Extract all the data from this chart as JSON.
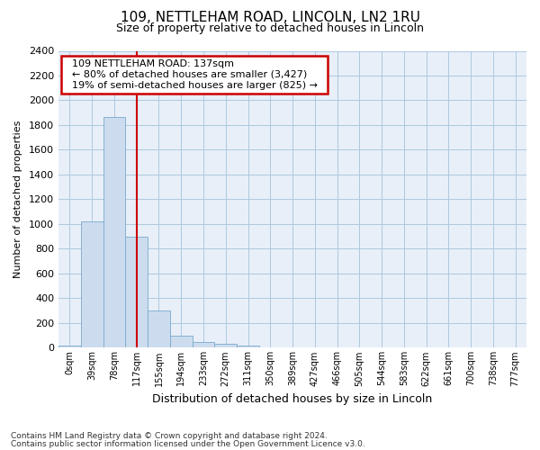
{
  "title_line1": "109, NETTLEHAM ROAD, LINCOLN, LN2 1RU",
  "title_line2": "Size of property relative to detached houses in Lincoln",
  "xlabel": "Distribution of detached houses by size in Lincoln",
  "ylabel": "Number of detached properties",
  "annotation_line1": "109 NETTLEHAM ROAD: 137sqm",
  "annotation_line2": "← 80% of detached houses are smaller (3,427)",
  "annotation_line3": "19% of semi-detached houses are larger (825) →",
  "footer_line1": "Contains HM Land Registry data © Crown copyright and database right 2024.",
  "footer_line2": "Contains public sector information licensed under the Open Government Licence v3.0.",
  "bar_color": "#ccdcee",
  "bar_edge_color": "#7aaace",
  "plot_bg_color": "#e8eff8",
  "background_color": "#ffffff",
  "grid_color": "#aec8e0",
  "red_line_color": "#cc0000",
  "annotation_box_color": "#cc0000",
  "categories": [
    "0sqm",
    "39sqm",
    "78sqm",
    "117sqm",
    "155sqm",
    "194sqm",
    "233sqm",
    "272sqm",
    "311sqm",
    "350sqm",
    "389sqm",
    "427sqm",
    "466sqm",
    "505sqm",
    "544sqm",
    "583sqm",
    "622sqm",
    "661sqm",
    "700sqm",
    "738sqm",
    "777sqm"
  ],
  "values": [
    20,
    1020,
    1865,
    900,
    300,
    100,
    50,
    35,
    20,
    0,
    0,
    0,
    0,
    0,
    0,
    0,
    0,
    0,
    0,
    0,
    0
  ],
  "ylim": [
    0,
    2400
  ],
  "yticks": [
    0,
    200,
    400,
    600,
    800,
    1000,
    1200,
    1400,
    1600,
    1800,
    2000,
    2200,
    2400
  ],
  "red_line_x": 3.5,
  "figsize": [
    6.0,
    5.0
  ],
  "dpi": 100
}
